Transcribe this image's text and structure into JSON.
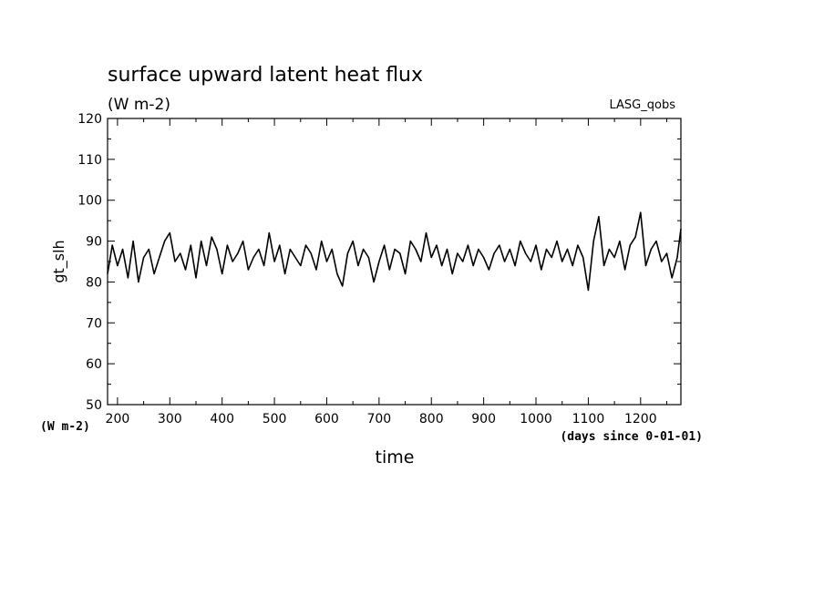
{
  "chart_data": {
    "type": "line",
    "title": "surface upward latent heat flux",
    "subtitle": "(W m-2)",
    "dataset_label": "LASG_qobs",
    "xlabel": "time",
    "x_unit_label": "(days since 0-01-01)",
    "ylabel": "gt_slh",
    "y_unit_label": "(W m-2)",
    "xlim": [
      181,
      1277
    ],
    "ylim": [
      50,
      120
    ],
    "x_ticks": [
      200,
      300,
      400,
      500,
      600,
      700,
      800,
      900,
      1000,
      1100,
      1200
    ],
    "y_ticks": [
      50,
      60,
      70,
      80,
      90,
      100,
      110,
      120
    ],
    "grid": false,
    "line_color": "#000000",
    "series": [
      {
        "x": [
          181,
          190,
          200,
          210,
          220,
          230,
          240,
          250,
          260,
          270,
          280,
          290,
          300,
          310,
          320,
          330,
          340,
          350,
          360,
          370,
          380,
          390,
          400,
          410,
          420,
          430,
          440,
          450,
          460,
          470,
          480,
          490,
          500,
          510,
          520,
          530,
          540,
          550,
          560,
          570,
          580,
          590,
          600,
          610,
          620,
          630,
          640,
          650,
          660,
          670,
          680,
          690,
          700,
          710,
          720,
          730,
          740,
          750,
          760,
          770,
          780,
          790,
          800,
          810,
          820,
          830,
          840,
          850,
          860,
          870,
          880,
          890,
          900,
          910,
          920,
          930,
          940,
          950,
          960,
          970,
          980,
          990,
          1000,
          1010,
          1020,
          1030,
          1040,
          1050,
          1060,
          1070,
          1080,
          1090,
          1100,
          1110,
          1120,
          1130,
          1140,
          1150,
          1160,
          1170,
          1180,
          1190,
          1200,
          1210,
          1220,
          1230,
          1240,
          1250,
          1260,
          1270,
          1277
        ],
        "y": [
          82,
          89,
          84,
          88,
          81,
          90,
          80,
          86,
          88,
          82,
          86,
          90,
          92,
          85,
          87,
          83,
          89,
          81,
          90,
          84,
          91,
          88,
          82,
          89,
          85,
          87,
          90,
          83,
          86,
          88,
          84,
          92,
          85,
          89,
          82,
          88,
          86,
          84,
          89,
          87,
          83,
          90,
          85,
          88,
          82,
          79,
          87,
          90,
          84,
          88,
          86,
          80,
          85,
          89,
          83,
          88,
          87,
          82,
          90,
          88,
          85,
          92,
          86,
          89,
          84,
          88,
          82,
          87,
          85,
          89,
          84,
          88,
          86,
          83,
          87,
          89,
          85,
          88,
          84,
          90,
          87,
          85,
          89,
          83,
          88,
          86,
          90,
          85,
          88,
          84,
          89,
          86,
          78,
          90,
          96,
          84,
          88,
          86,
          90,
          83,
          89,
          91,
          97,
          84,
          88,
          90,
          85,
          87,
          81,
          86,
          93
        ]
      }
    ]
  }
}
